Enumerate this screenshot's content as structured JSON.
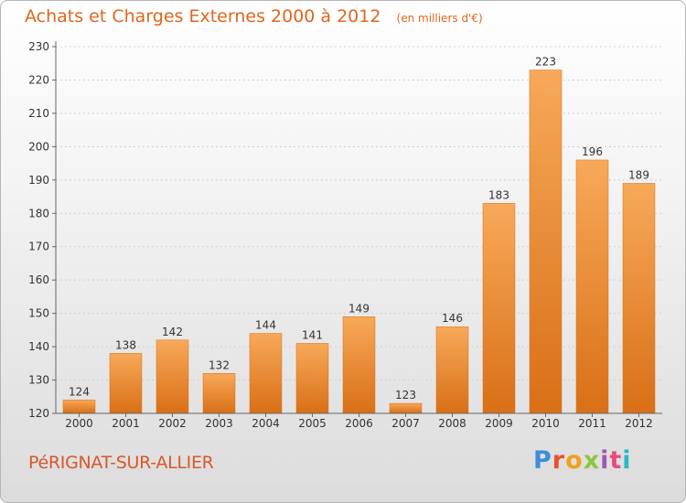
{
  "header": {
    "title": "Achats et Charges Externes 2000 à 2012",
    "unit": "(en milliers d'€)"
  },
  "footer": {
    "city": "PéRIGNAT-SUR-ALLIER",
    "brand": "Proxiti"
  },
  "colors": {
    "bar_top": "#f7a95a",
    "bar_bottom": "#d96f16",
    "axis": "#666666",
    "grid": "#d0d0d0",
    "label": "#333333",
    "title": "#e0661f"
  },
  "chart_data": {
    "type": "bar",
    "title": "Achats et Charges Externes 2000 à 2012",
    "categories": [
      "2000",
      "2001",
      "2002",
      "2003",
      "2004",
      "2005",
      "2006",
      "2007",
      "2008",
      "2009",
      "2010",
      "2011",
      "2012"
    ],
    "values": [
      124,
      138,
      142,
      132,
      144,
      141,
      149,
      123,
      146,
      183,
      223,
      196,
      189
    ],
    "ylim": [
      120,
      230
    ],
    "yticks": [
      120,
      130,
      140,
      150,
      160,
      170,
      180,
      190,
      200,
      210,
      220,
      230
    ],
    "grid": true,
    "xlabel": "",
    "ylabel": ""
  }
}
